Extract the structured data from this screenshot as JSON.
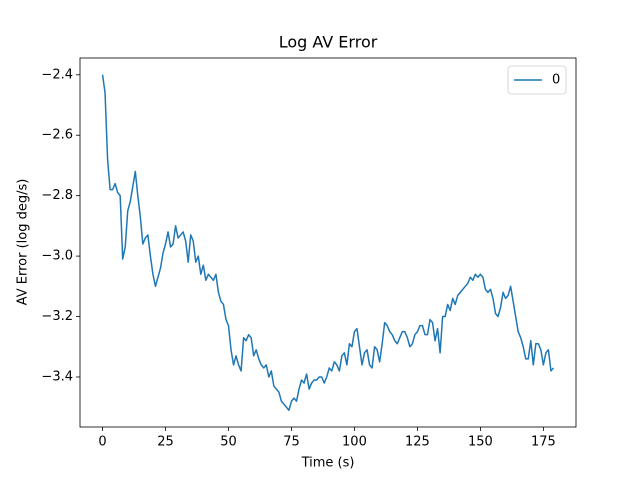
{
  "chart_data": {
    "type": "line",
    "title": "Log AV Error",
    "xlabel": "Time (s)",
    "ylabel": "AV Error (log deg/s)",
    "x": [
      0,
      1,
      2,
      3,
      4,
      5,
      6,
      7,
      8,
      9,
      10,
      11,
      12,
      13,
      14,
      15,
      16,
      17,
      18,
      19,
      20,
      21,
      22,
      23,
      24,
      25,
      26,
      27,
      28,
      29,
      30,
      31,
      32,
      33,
      34,
      35,
      36,
      37,
      38,
      39,
      40,
      41,
      42,
      43,
      44,
      45,
      46,
      47,
      48,
      49,
      50,
      51,
      52,
      53,
      54,
      55,
      56,
      57,
      58,
      59,
      60,
      61,
      62,
      63,
      64,
      65,
      66,
      67,
      68,
      69,
      70,
      71,
      72,
      73,
      74,
      75,
      76,
      77,
      78,
      79,
      80,
      81,
      82,
      83,
      84,
      85,
      86,
      87,
      88,
      89,
      90,
      91,
      92,
      93,
      94,
      95,
      96,
      97,
      98,
      99,
      100,
      101,
      102,
      103,
      104,
      105,
      106,
      107,
      108,
      109,
      110,
      111,
      112,
      113,
      114,
      115,
      116,
      117,
      118,
      119,
      120,
      121,
      122,
      123,
      124,
      125,
      126,
      127,
      128,
      129,
      130,
      131,
      132,
      133,
      134,
      135,
      136,
      137,
      138,
      139,
      140,
      141,
      142,
      143,
      144,
      145,
      146,
      147,
      148,
      149,
      150,
      151,
      152,
      153,
      154,
      155,
      156,
      157,
      158,
      159,
      160,
      161,
      162,
      163,
      164,
      165,
      166,
      167,
      168,
      169,
      170,
      171,
      172,
      173,
      174,
      175,
      176,
      177,
      178,
      179
    ],
    "series": [
      {
        "name": "0",
        "color": "#1f77b4",
        "values": [
          -2.4,
          -2.46,
          -2.68,
          -2.78,
          -2.78,
          -2.76,
          -2.79,
          -2.8,
          -3.01,
          -2.97,
          -2.85,
          -2.82,
          -2.77,
          -2.72,
          -2.8,
          -2.87,
          -2.96,
          -2.94,
          -2.93,
          -3.0,
          -3.06,
          -3.1,
          -3.07,
          -3.04,
          -2.99,
          -2.96,
          -2.92,
          -2.97,
          -2.96,
          -2.9,
          -2.94,
          -2.93,
          -2.92,
          -2.95,
          -3.02,
          -2.93,
          -2.95,
          -3.02,
          -3.0,
          -3.06,
          -3.03,
          -3.08,
          -3.06,
          -3.07,
          -3.08,
          -3.06,
          -3.12,
          -3.15,
          -3.16,
          -3.21,
          -3.23,
          -3.31,
          -3.36,
          -3.33,
          -3.36,
          -3.38,
          -3.27,
          -3.28,
          -3.26,
          -3.27,
          -3.33,
          -3.31,
          -3.34,
          -3.36,
          -3.37,
          -3.36,
          -3.4,
          -3.38,
          -3.43,
          -3.44,
          -3.45,
          -3.48,
          -3.49,
          -3.5,
          -3.51,
          -3.48,
          -3.47,
          -3.48,
          -3.44,
          -3.41,
          -3.42,
          -3.39,
          -3.44,
          -3.42,
          -3.41,
          -3.41,
          -3.4,
          -3.4,
          -3.42,
          -3.4,
          -3.37,
          -3.38,
          -3.35,
          -3.36,
          -3.38,
          -3.33,
          -3.32,
          -3.36,
          -3.29,
          -3.3,
          -3.25,
          -3.24,
          -3.3,
          -3.36,
          -3.32,
          -3.31,
          -3.36,
          -3.37,
          -3.3,
          -3.31,
          -3.35,
          -3.29,
          -3.22,
          -3.23,
          -3.25,
          -3.26,
          -3.28,
          -3.29,
          -3.27,
          -3.25,
          -3.25,
          -3.27,
          -3.3,
          -3.29,
          -3.26,
          -3.25,
          -3.23,
          -3.23,
          -3.26,
          -3.26,
          -3.21,
          -3.22,
          -3.28,
          -3.24,
          -3.32,
          -3.2,
          -3.2,
          -3.16,
          -3.18,
          -3.14,
          -3.16,
          -3.13,
          -3.12,
          -3.11,
          -3.1,
          -3.09,
          -3.07,
          -3.08,
          -3.06,
          -3.07,
          -3.06,
          -3.07,
          -3.11,
          -3.12,
          -3.11,
          -3.14,
          -3.19,
          -3.2,
          -3.17,
          -3.12,
          -3.14,
          -3.13,
          -3.1,
          -3.15,
          -3.2,
          -3.25,
          -3.27,
          -3.3,
          -3.34,
          -3.34,
          -3.28,
          -3.36,
          -3.29,
          -3.29,
          -3.31,
          -3.36,
          -3.32,
          -3.31,
          -3.38,
          -3.37
        ]
      }
    ],
    "xlim": [
      -8.95,
      187.95
    ],
    "xticks": [
      0,
      25,
      50,
      75,
      100,
      125,
      150,
      175
    ],
    "ylim": [
      -3.5655,
      -2.3445
    ],
    "yticks": [
      {
        "value": -3.4,
        "label": "−3.4"
      },
      {
        "value": -3.2,
        "label": "−3.2"
      },
      {
        "value": -3.0,
        "label": "−3.0"
      },
      {
        "value": -2.8,
        "label": "−2.8"
      },
      {
        "value": -2.6,
        "label": "−2.6"
      },
      {
        "value": -2.4,
        "label": "−2.4"
      }
    ],
    "legend": "upper right"
  }
}
